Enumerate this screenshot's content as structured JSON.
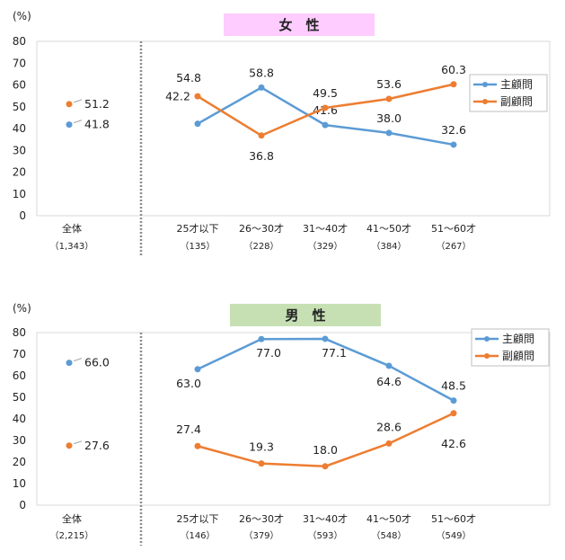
{
  "chart_data": [
    {
      "type": "line",
      "title": "女　性",
      "title_bg": "#ffccff",
      "ylabel": "(%)",
      "ylim": [
        0,
        80
      ],
      "yticks": [
        0,
        10,
        20,
        30,
        40,
        50,
        60,
        70,
        80
      ],
      "total": {
        "label": "全体",
        "sub": "（1,343）",
        "main": 41.8,
        "sub_value": 51.2
      },
      "categories": [
        {
          "label": "25才以下",
          "sub": "（135）"
        },
        {
          "label": "26～30才",
          "sub": "（228）"
        },
        {
          "label": "31～40才",
          "sub": "（329）"
        },
        {
          "label": "41～50才",
          "sub": "（384）"
        },
        {
          "label": "51～60才",
          "sub": "（267）"
        }
      ],
      "series": [
        {
          "name": "主顧問",
          "color": "#5b9bd5",
          "values": [
            42.2,
            58.8,
            41.6,
            38.0,
            32.6
          ]
        },
        {
          "name": "副顧問",
          "color": "#ed7d31",
          "values": [
            54.8,
            36.8,
            49.5,
            53.6,
            60.3
          ]
        }
      ],
      "legend_position": "right"
    },
    {
      "type": "line",
      "title": "男　性",
      "title_bg": "#c6e0b4",
      "ylabel": "(%)",
      "ylim": [
        0,
        80
      ],
      "yticks": [
        0,
        10,
        20,
        30,
        40,
        50,
        60,
        70,
        80
      ],
      "total": {
        "label": "全体",
        "sub": "（2,215）",
        "main": 66.0,
        "sub_value": 27.6
      },
      "categories": [
        {
          "label": "25才以下",
          "sub": "（146）"
        },
        {
          "label": "26～30才",
          "sub": "（379）"
        },
        {
          "label": "31～40才",
          "sub": "（593）"
        },
        {
          "label": "41～50才",
          "sub": "（548）"
        },
        {
          "label": "51～60才",
          "sub": "（549）"
        }
      ],
      "series": [
        {
          "name": "主顧問",
          "color": "#5b9bd5",
          "values": [
            63.0,
            77.0,
            77.1,
            64.6,
            48.5
          ]
        },
        {
          "name": "副顧問",
          "color": "#ed7d31",
          "values": [
            27.4,
            19.3,
            18.0,
            28.6,
            42.6
          ]
        }
      ],
      "legend_position": "top-right"
    }
  ]
}
